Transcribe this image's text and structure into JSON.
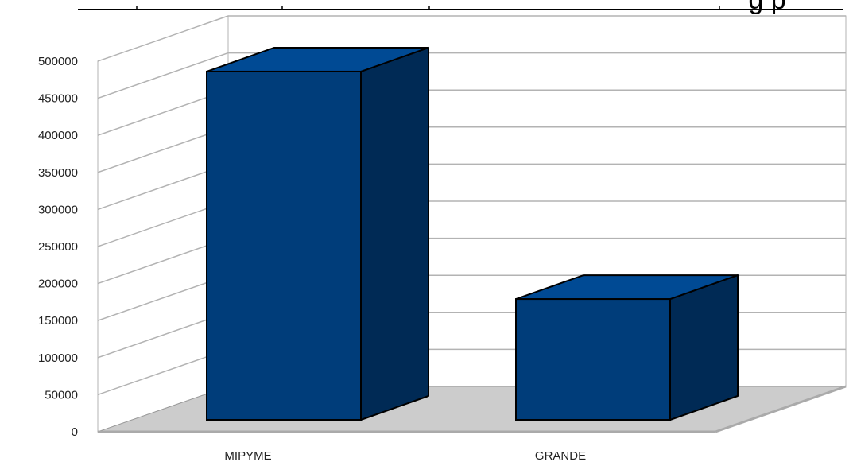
{
  "header_fragment": {
    "text": "g    p"
  },
  "chart_data": {
    "type": "bar",
    "categories": [
      "MIPYME",
      "GRANDE"
    ],
    "values": [
      470000,
      163000
    ],
    "ylim": [
      0,
      500000
    ],
    "yticks": [
      0,
      50000,
      100000,
      150000,
      200000,
      250000,
      300000,
      350000,
      400000,
      450000,
      500000
    ],
    "ytick_labels": [
      "0",
      "50000",
      "100000",
      "150000",
      "200000",
      "250000",
      "300000",
      "350000",
      "400000",
      "450000",
      "500000"
    ],
    "grid": true,
    "three_d": true,
    "legend": "none",
    "colors": {
      "bar_front": "#003d7a",
      "bar_top": "#004a94",
      "bar_side": "#002a55",
      "floor": "#cccccc",
      "grid": "#b3b3b3"
    }
  }
}
